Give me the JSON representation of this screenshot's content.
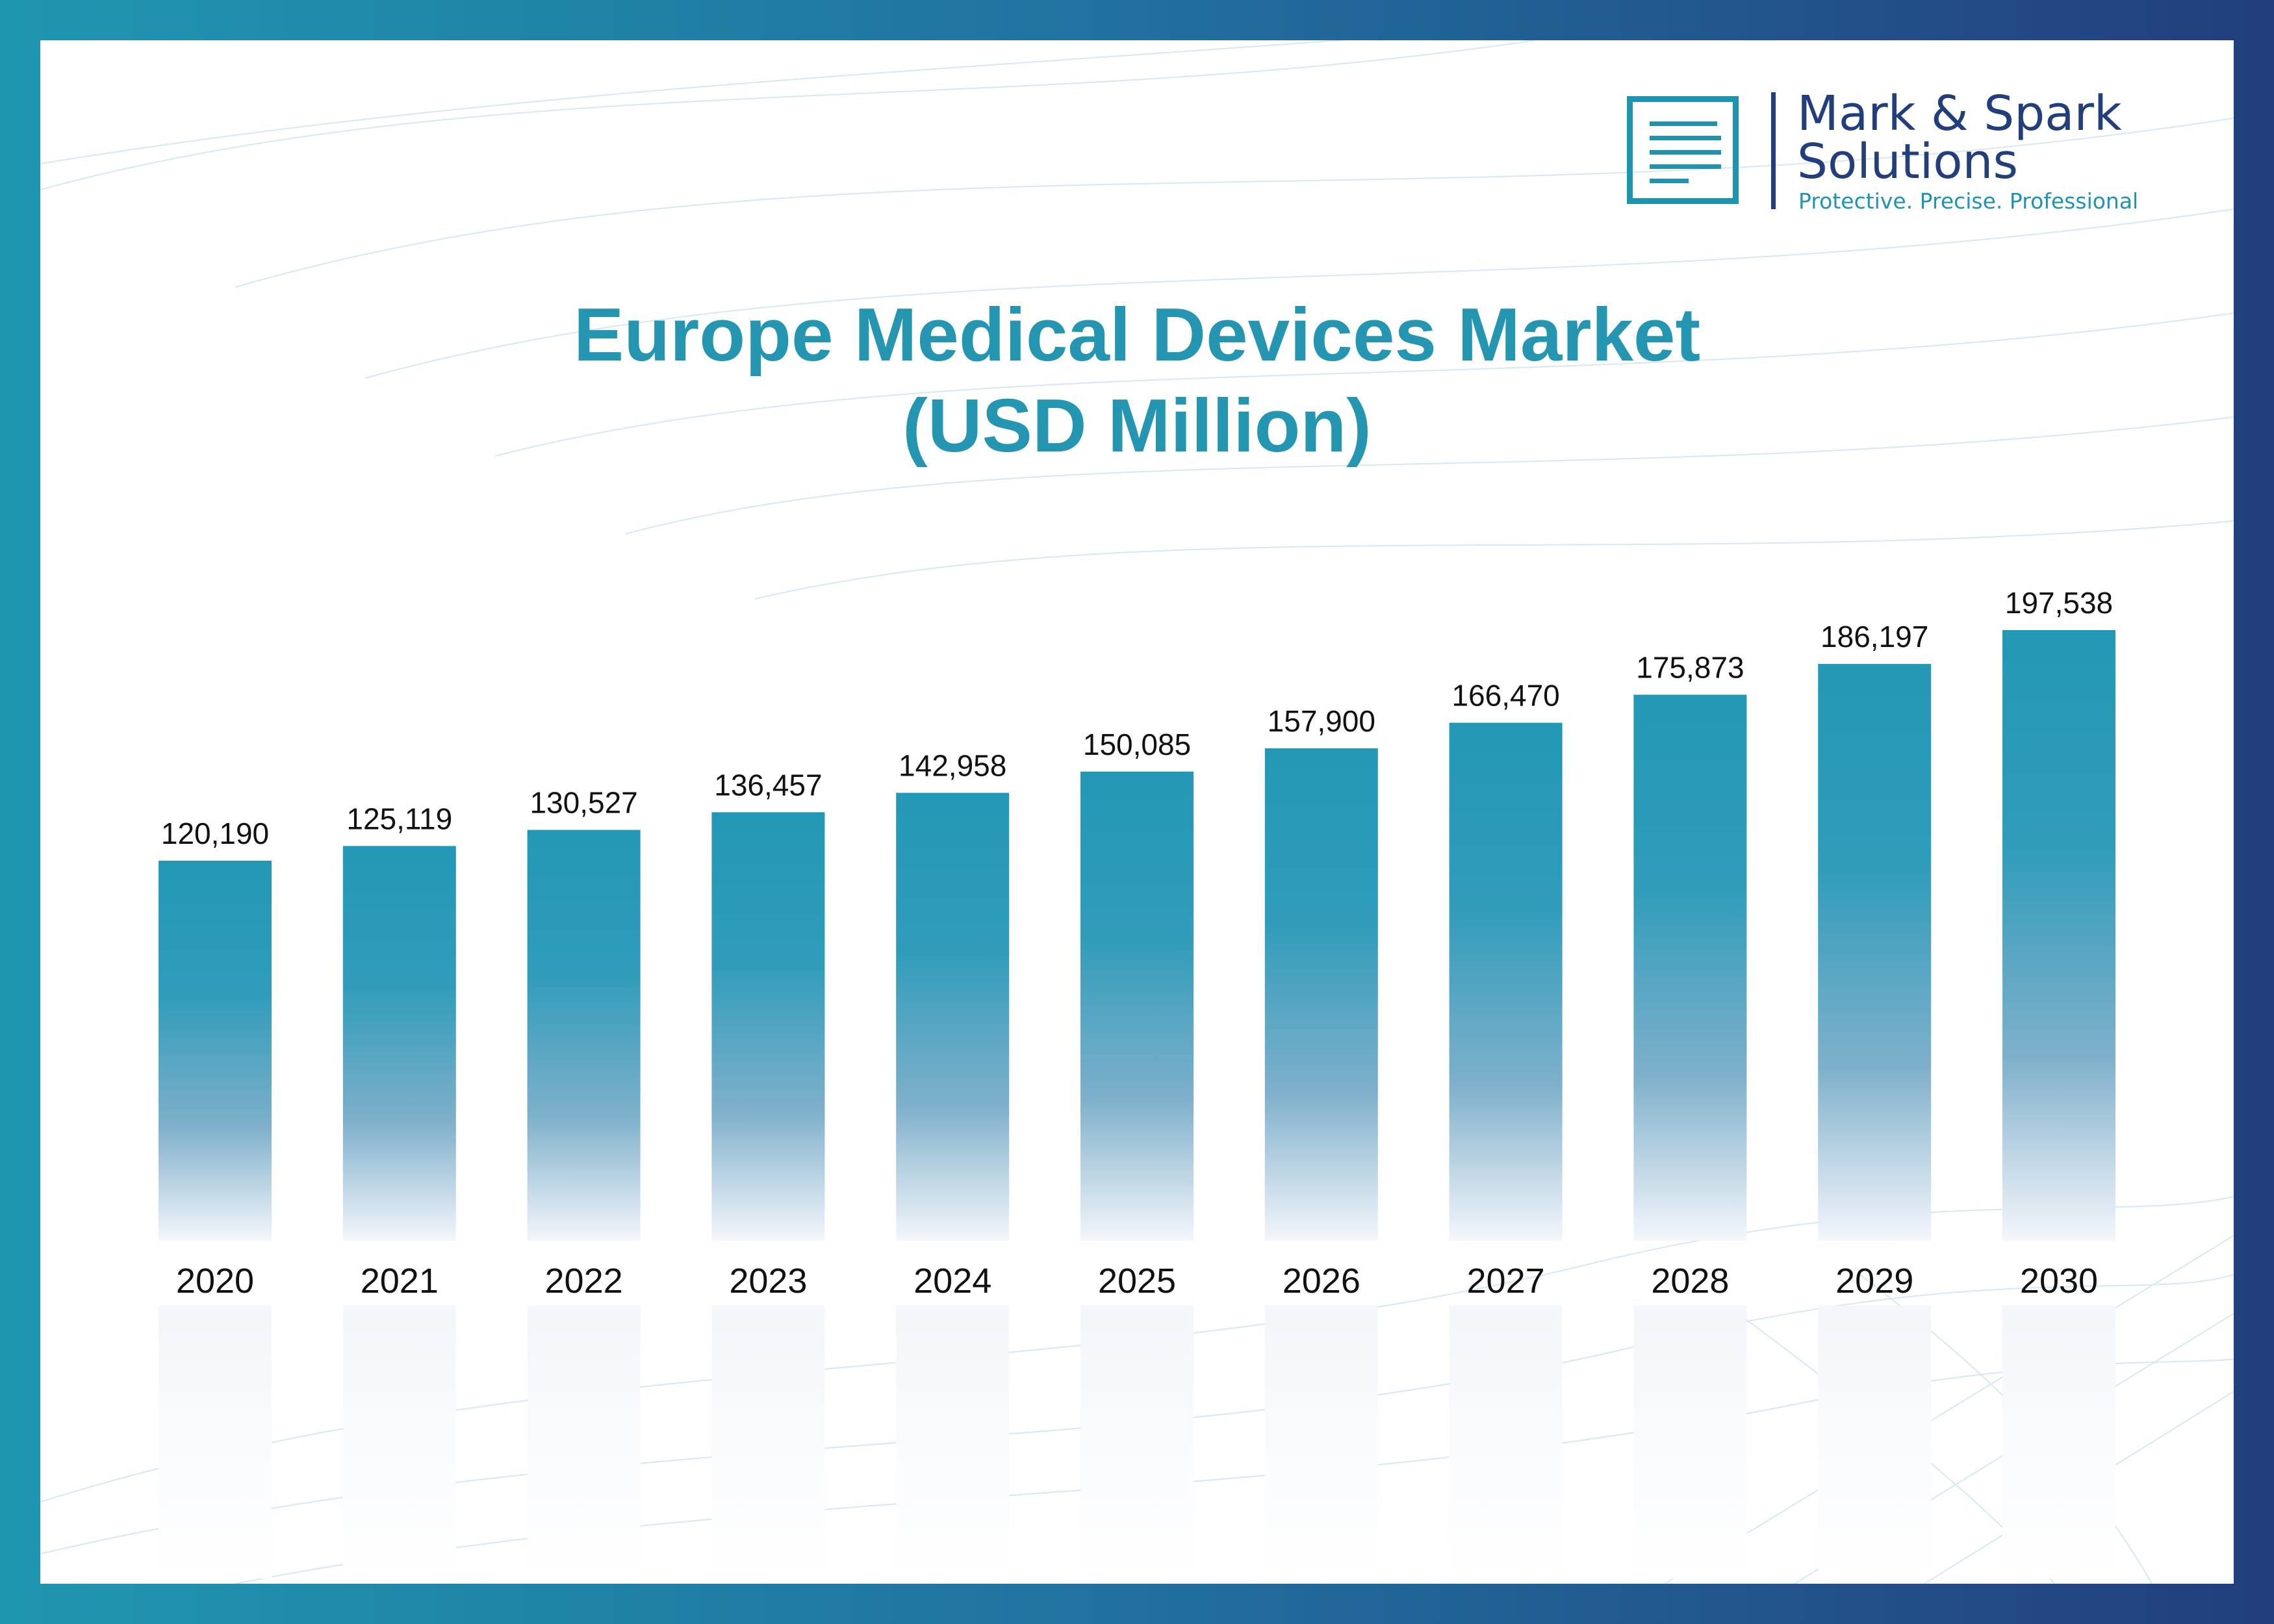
{
  "brand": {
    "name_line1": "Mark & Spark",
    "name_line2": "Solutions",
    "tagline": "Protective. Precise. Professional"
  },
  "colors": {
    "bar_top": "#2398b6",
    "bar_bottom": "#f4f6fb",
    "title": "#2596b2",
    "frame_left": "#1f96b0",
    "frame_right": "#223e7c"
  },
  "chart_data": {
    "type": "bar",
    "title_line1": "Europe Medical Devices Market",
    "title_line2": "(USD Million)",
    "categories": [
      "2020",
      "2021",
      "2022",
      "2023",
      "2024",
      "2025",
      "2026",
      "2027",
      "2028",
      "2029",
      "2030"
    ],
    "values": [
      120190,
      125119,
      130527,
      136457,
      142958,
      150085,
      157900,
      166470,
      175873,
      186197,
      197538
    ],
    "value_labels": [
      "120,190",
      "125,119",
      "130,527",
      "136,457",
      "142,958",
      "150,085",
      "157,900",
      "166,470",
      "175,873",
      "186,197",
      "197,538"
    ],
    "grid": false,
    "legend": "none"
  }
}
